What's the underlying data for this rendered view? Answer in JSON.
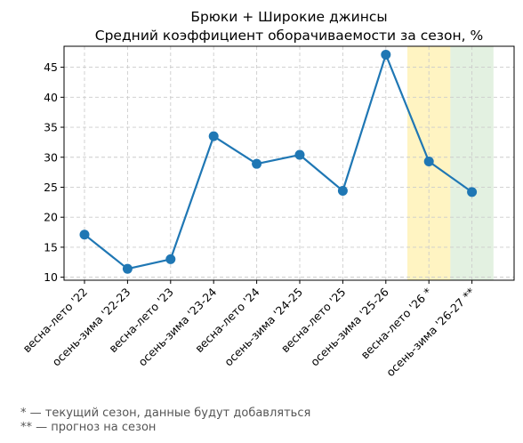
{
  "chart_data": {
    "type": "line",
    "title": "Брюки + Широкие джинсы",
    "subtitle": "Средний коэффициент оборачиваемости за сезон, %",
    "xlabel": "",
    "ylabel": "",
    "categories": [
      "весна-лето '22",
      "осень-зима '22-23",
      "весна-лето '23",
      "осень-зима '23-24",
      "весна-лето '24",
      "осень-зима '24-25",
      "весна-лето '25",
      "осень-зима '25-26",
      "весна-лето '26 *",
      "осень-зима '26-27 **"
    ],
    "series": [
      {
        "values": [
          17.1,
          11.4,
          13.0,
          33.5,
          28.9,
          30.4,
          24.4,
          47.1,
          29.3,
          24.2
        ]
      }
    ],
    "ylim": [
      9.5,
      48.5
    ],
    "yticks": [
      10,
      15,
      20,
      25,
      30,
      35,
      40,
      45
    ],
    "grid": true,
    "line_color": "#1f77b4",
    "highlight_bands": [
      {
        "category": "весна-лето '26 *",
        "color": "#fff4c2"
      },
      {
        "category": "осень-зима '26-27 **",
        "color": "#e3f1e1"
      }
    ]
  },
  "footnotes": [
    "* — текущий сезон, данные будут добавляться",
    "** — прогноз на сезон"
  ]
}
